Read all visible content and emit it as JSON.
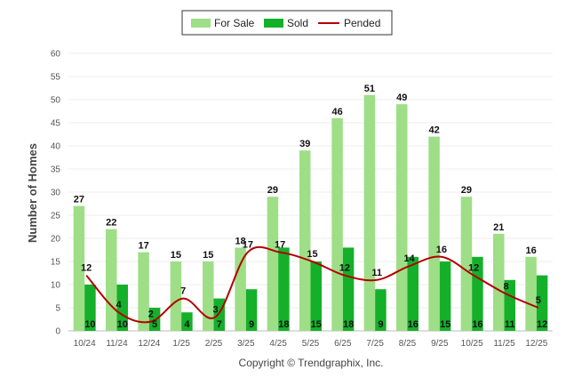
{
  "chart_data": {
    "type": "bar",
    "title": "",
    "xlabel": "",
    "ylabel": "Number of Homes",
    "ylim": [
      0,
      60
    ],
    "ytick_step": 5,
    "grid": true,
    "legend_position": "top-center",
    "categories": [
      "10/24",
      "11/24",
      "12/24",
      "1/25",
      "2/25",
      "3/25",
      "4/25",
      "5/25",
      "6/25",
      "7/25",
      "8/25",
      "9/25",
      "10/25",
      "11/25",
      "12/25"
    ],
    "series": [
      {
        "name": "For Sale",
        "type": "bar",
        "color": "#9ede87",
        "values": [
          27,
          22,
          17,
          15,
          15,
          18,
          29,
          39,
          46,
          51,
          49,
          42,
          29,
          21,
          16
        ]
      },
      {
        "name": "Sold",
        "type": "bar",
        "color": "#15b02a",
        "values": [
          10,
          10,
          5,
          4,
          7,
          9,
          18,
          15,
          18,
          9,
          16,
          15,
          16,
          11,
          12
        ]
      },
      {
        "name": "Pended",
        "type": "line",
        "color": "#b30000",
        "values": [
          12,
          4,
          2,
          7,
          3,
          17,
          17,
          15,
          12,
          11,
          14,
          16,
          12,
          8,
          5
        ]
      }
    ],
    "footer": "Copyright © Trendgraphix, Inc."
  }
}
